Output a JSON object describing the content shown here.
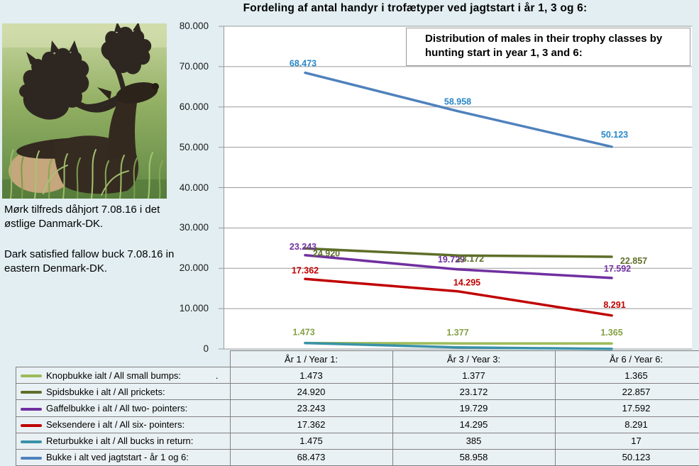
{
  "colors": {
    "page_bg": "#e2eef2",
    "plot_bg": "#ffffff",
    "gridline": "#9a9a9a",
    "table_border": "#808080",
    "table_cell_bg": "#eaf1f4"
  },
  "chart_title": "Fordeling af antal handyr i trofætyper ved jagtstart i år 1, 3 og 6:",
  "annotation_box": "Distribution of males in their trophy classes by hunting start in year 1, 3 and 6:",
  "photo_caption": {
    "danish": "Mørk tilfreds dåhjort 7.08.16 i det østlige Danmark-DK.",
    "english": "Dark satisfied fallow buck 7.08.16 in eastern Denmark-DK."
  },
  "chart_data": {
    "type": "line",
    "title": "Fordeling af antal handyr i trofætyper ved jagtstart i år 1, 3 og 6:",
    "categories": [
      "År 1 / Year 1:",
      "År 3 / Year 3:",
      "År 6 / Year 6:"
    ],
    "ylim": [
      0,
      80000
    ],
    "ytick_step": 10000,
    "ytick_labels": [
      "0",
      "10.000",
      "20.000",
      "30.000",
      "40.000",
      "50.000",
      "60.000",
      "70.000",
      "80.000"
    ],
    "grid": true,
    "legend_position": "table-left",
    "series": [
      {
        "name": "Knopbukke ialt / All small bumps:",
        "color": "#9bbb59",
        "label_color": "#85a144",
        "values": [
          1473,
          1377,
          1365
        ],
        "point_labels": [
          "1.473",
          "1.377",
          "1.365"
        ],
        "label_offsets": [
          [
            -2,
            -11
          ],
          [
            0,
            -11
          ],
          [
            0,
            -11
          ]
        ]
      },
      {
        "name": "Spidsbukke i alt / All prickets:",
        "color": "#5e6e28",
        "values": [
          24920,
          23172,
          22857
        ],
        "point_labels": [
          "24.920",
          "23.172",
          "22.857"
        ],
        "label_offsets": [
          [
            30,
            11
          ],
          [
            18,
            9
          ],
          [
            31,
            10
          ]
        ]
      },
      {
        "name": "Gaffelbukke i alt / All two- pointers:",
        "color": "#7030a0",
        "values": [
          23243,
          19729,
          17592
        ],
        "point_labels": [
          "23.243",
          "19.729",
          "17.592"
        ],
        "label_offsets": [
          [
            -3,
            -8
          ],
          [
            -9,
            -10
          ],
          [
            8,
            -9
          ]
        ]
      },
      {
        "name": "Seksendere i alt / All six- pointers:",
        "color": "#c00000",
        "values": [
          17362,
          14295,
          8291
        ],
        "point_labels": [
          "17.362",
          "14.295",
          "8.291"
        ],
        "label_offsets": [
          [
            0,
            -8
          ],
          [
            13,
            -8
          ],
          [
            4,
            -11
          ]
        ]
      },
      {
        "name": "Returbukke i alt / All bucks in return:",
        "color": "#3a92a8",
        "values": [
          1475,
          385,
          17
        ],
        "point_labels": [
          "",
          "",
          ""
        ],
        "label_offsets": [
          [
            0,
            0
          ],
          [
            0,
            0
          ],
          [
            0,
            0
          ]
        ]
      },
      {
        "name": "Bukke i alt ved jagtstart - år 1 og 6:",
        "color": "#4f81bd",
        "label_color": "#2787c8",
        "values": [
          68473,
          58958,
          50123
        ],
        "point_labels": [
          "68.473",
          "58.958",
          "50.123"
        ],
        "label_offsets": [
          [
            -3,
            -9
          ],
          [
            0,
            -9
          ],
          [
            4,
            -13
          ]
        ]
      }
    ]
  },
  "table": {
    "col_headers": [
      "År 1 / Year 1:",
      "År 3 / Year 3:",
      "År 6 / Year 6:"
    ],
    "rows": [
      {
        "label": "Knopbukke ialt / All small bumps:",
        "note": ".",
        "color": "#9bbb59",
        "values": [
          "1.473",
          "1.377",
          "1.365"
        ]
      },
      {
        "label": "Spidsbukke i alt / All prickets:",
        "note": "",
        "color": "#5e6e28",
        "values": [
          "24.920",
          "23.172",
          "22.857"
        ]
      },
      {
        "label": "Gaffelbukke i alt / All two- pointers:",
        "note": "",
        "color": "#7030a0",
        "values": [
          "23.243",
          "19.729",
          "17.592"
        ]
      },
      {
        "label": "Seksendere i alt / All six- pointers:",
        "note": "",
        "color": "#c00000",
        "values": [
          "17.362",
          "14.295",
          "8.291"
        ]
      },
      {
        "label": "Returbukke i alt / All bucks in return:",
        "note": "",
        "color": "#3a92a8",
        "values": [
          "1.475",
          "385",
          "17"
        ]
      },
      {
        "label": "Bukke i alt ved jagtstart - år 1 og 6:",
        "note": "",
        "color": "#4f81bd",
        "values": [
          "68.473",
          "58.958",
          "50.123"
        ]
      }
    ]
  }
}
